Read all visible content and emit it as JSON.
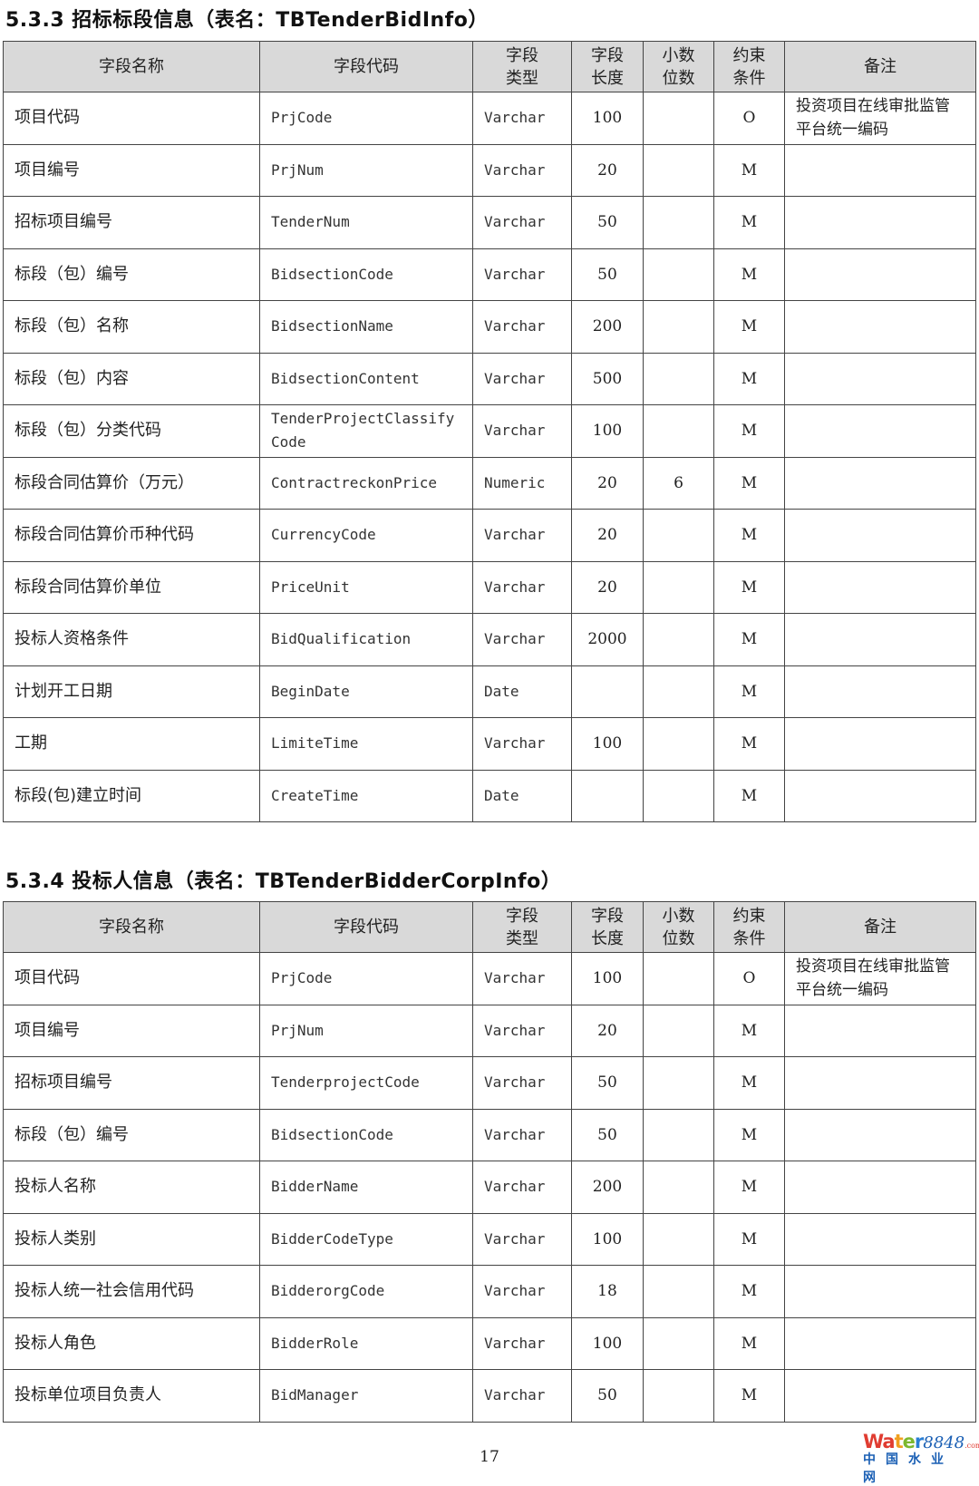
{
  "section1": {
    "title": "5.3.3 招标标段信息（表名：TBTenderBidInfo）",
    "headers": [
      "字段名称",
      "字段代码",
      "字段类型",
      "字段长度",
      "小数位数",
      "约束条件",
      "备注"
    ],
    "rows": [
      [
        "项目代码",
        "PrjCode",
        "Varchar",
        "100",
        "",
        "O",
        "投资项目在线审批监管平台统一编码"
      ],
      [
        "项目编号",
        "PrjNum",
        "Varchar",
        "20",
        "",
        "M",
        ""
      ],
      [
        "招标项目编号",
        "TenderNum",
        "Varchar",
        "50",
        "",
        "M",
        ""
      ],
      [
        "标段（包）编号",
        "BidsectionCode",
        "Varchar",
        "50",
        "",
        "M",
        ""
      ],
      [
        "标段（包）名称",
        "BidsectionName",
        "Varchar",
        "200",
        "",
        "M",
        ""
      ],
      [
        "标段（包）内容",
        "BidsectionContent",
        "Varchar",
        "500",
        "",
        "M",
        ""
      ],
      [
        "标段（包）分类代码",
        "TenderProjectClassify Code",
        "Varchar",
        "100",
        "",
        "M",
        ""
      ],
      [
        "标段合同估算价（万元）",
        "ContractreckonPrice",
        "Numeric",
        "20",
        "6",
        "M",
        ""
      ],
      [
        "标段合同估算价币种代码",
        "CurrencyCode",
        "Varchar",
        "20",
        "",
        "M",
        ""
      ],
      [
        "标段合同估算价单位",
        "PriceUnit",
        "Varchar",
        "20",
        "",
        "M",
        ""
      ],
      [
        "投标人资格条件",
        "BidQualification",
        "Varchar",
        "2000",
        "",
        "M",
        ""
      ],
      [
        "计划开工日期",
        "BeginDate",
        "Date",
        "",
        "",
        "M",
        ""
      ],
      [
        "工期",
        "LimiteTime",
        "Varchar",
        "100",
        "",
        "M",
        ""
      ],
      [
        "标段(包)建立时间",
        "CreateTime",
        "Date",
        "",
        "",
        "M",
        ""
      ]
    ]
  },
  "section2": {
    "title": "5.3.4 投标人信息（表名：TBTenderBidderCorpInfo）",
    "headers": [
      "字段名称",
      "字段代码",
      "字段类型",
      "字段长度",
      "小数位数",
      "约束条件",
      "备注"
    ],
    "rows": [
      [
        "项目代码",
        "PrjCode",
        "Varchar",
        "100",
        "",
        "O",
        "投资项目在线审批监管平台统一编码"
      ],
      [
        "项目编号",
        "PrjNum",
        "Varchar",
        "20",
        "",
        "M",
        ""
      ],
      [
        "招标项目编号",
        "TenderprojectCode",
        "Varchar",
        "50",
        "",
        "M",
        ""
      ],
      [
        "标段（包）编号",
        "BidsectionCode",
        "Varchar",
        "50",
        "",
        "M",
        ""
      ],
      [
        "投标人名称",
        "BidderName",
        "Varchar",
        "200",
        "",
        "M",
        ""
      ],
      [
        "投标人类别",
        "BidderCodeType",
        "Varchar",
        "100",
        "",
        "M",
        ""
      ],
      [
        "投标人统一社会信用代码",
        "BidderorgCode",
        "Varchar",
        "18",
        "",
        "M",
        ""
      ],
      [
        "投标人角色",
        "BidderRole",
        "Varchar",
        "100",
        "",
        "M",
        ""
      ],
      [
        "投标单位项目负责人",
        "BidManager",
        "Varchar",
        "50",
        "",
        "M",
        ""
      ]
    ]
  },
  "page_number": "17",
  "watermark": {
    "brand": "Water",
    "digits": "8848",
    "suffix": ".com",
    "cn": "中国水业网"
  }
}
